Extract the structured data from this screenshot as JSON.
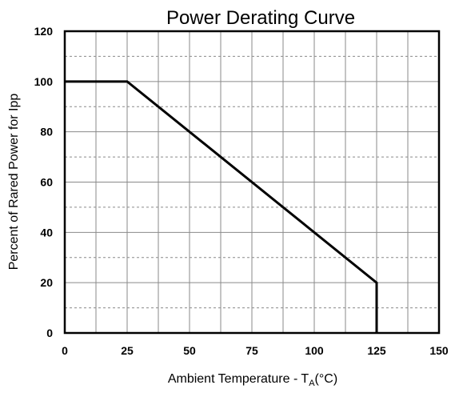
{
  "chart_data": {
    "type": "line",
    "title": "Power Derating Curve",
    "xlabel": {
      "main": "Ambient Temperature -  T",
      "subscript": "A",
      "unit": "(°C)"
    },
    "ylabel": "Percent of  Rared Power for Ipp",
    "xlim": [
      0,
      150
    ],
    "ylim": [
      0,
      120
    ],
    "x_ticks": [
      0,
      25,
      50,
      75,
      100,
      125,
      150
    ],
    "x_tick_labels": [
      "0",
      "25",
      "50",
      "75",
      "100",
      "125",
      "150"
    ],
    "y_ticks": [
      0,
      20,
      40,
      60,
      80,
      100,
      120
    ],
    "y_tick_labels": [
      "0",
      "20",
      "40",
      "60",
      "80",
      "100",
      "120"
    ],
    "x_grid_step": 12.5,
    "y_minor_grid_step": 10,
    "grid": true,
    "legend": "none",
    "series": [
      {
        "x": [
          0,
          25,
          125,
          125
        ],
        "y": [
          100,
          100,
          20,
          0
        ]
      }
    ],
    "colors": {
      "line": "#000000",
      "grid": "#8a8a8a",
      "border": "#000000"
    }
  }
}
